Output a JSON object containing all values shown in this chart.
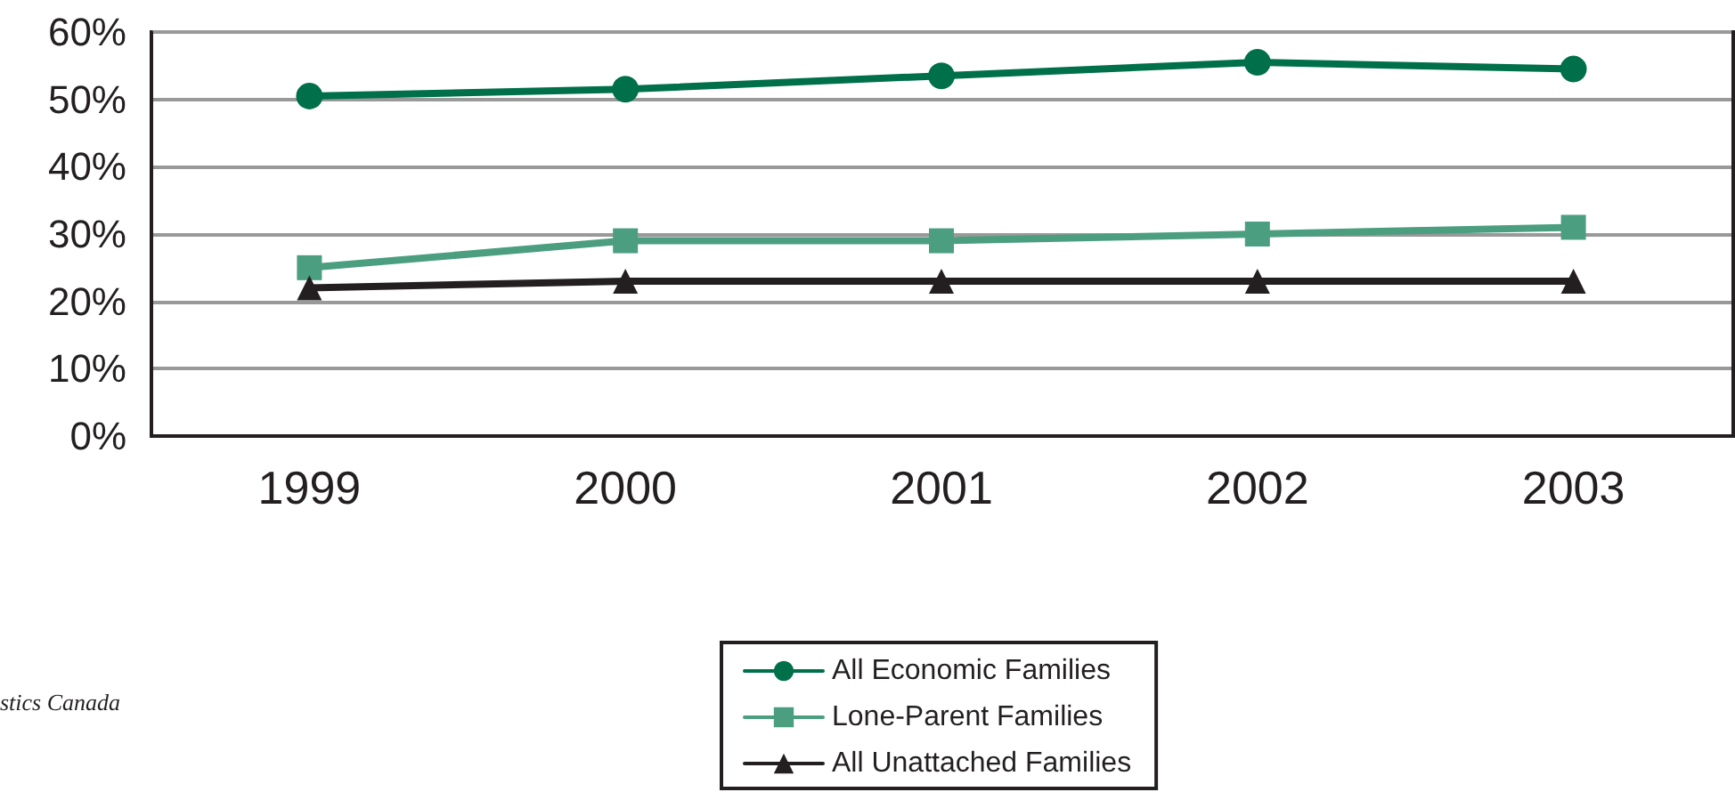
{
  "chart_data": {
    "type": "line",
    "categories": [
      "1999",
      "2000",
      "2001",
      "2002",
      "2003"
    ],
    "series": [
      {
        "name": "All Economic Families",
        "color": "#00704a",
        "marker": "circle",
        "values": [
          50.5,
          51.5,
          53.5,
          55.5,
          54.5
        ]
      },
      {
        "name": "Lone-Parent Families",
        "color": "#4b9e80",
        "marker": "square",
        "values": [
          25,
          29,
          29,
          30,
          31
        ]
      },
      {
        "name": "All Unattached Families",
        "color": "#231f20",
        "marker": "triangle",
        "values": [
          22,
          23,
          23,
          23,
          23
        ]
      }
    ],
    "ylim": [
      0,
      60
    ],
    "yticks": [
      {
        "value": 0,
        "label": "0%"
      },
      {
        "value": 10,
        "label": "10%"
      },
      {
        "value": 20,
        "label": "20%"
      },
      {
        "value": 30,
        "label": "30%"
      },
      {
        "value": 40,
        "label": "40%"
      },
      {
        "value": 50,
        "label": "50%"
      },
      {
        "value": 60,
        "label": "60%"
      }
    ],
    "grid": "y",
    "legend": "bottom",
    "line_style": "solid",
    "annotations": [
      "stics Canada"
    ]
  }
}
